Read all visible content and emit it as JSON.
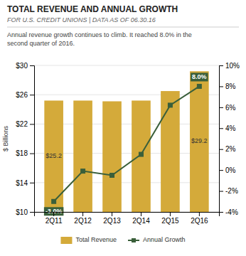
{
  "chart_data": {
    "type": "bar",
    "title": "TOTAL REVENUE AND ANNUAL GROWTH",
    "subtitle": "FOR U.S. CREDIT UNIONS | DATA AS OF 06.30.16",
    "description": "Annual revenue growth continues to climb. It reached 8.0% in the\nsecond quarter of 2016.",
    "categories": [
      "2Q11",
      "2Q12",
      "2Q13",
      "2Q14",
      "2Q15",
      "2Q16"
    ],
    "series": [
      {
        "name": "Total Revenue",
        "type": "bar",
        "color": "#D4AA3A",
        "values": [
          25.2,
          25.2,
          25.1,
          25.2,
          26.5,
          29.2
        ],
        "value_labels": [
          "$25.2",
          null,
          null,
          null,
          null,
          "$29.2"
        ]
      },
      {
        "name": "Annual Growth",
        "type": "line",
        "axis": "y2",
        "color": "#3A5F3A",
        "marker": "square",
        "values": [
          -3.0,
          -0.1,
          -0.5,
          1.5,
          6.2,
          8.0
        ],
        "value_labels": [
          "-3.0%",
          null,
          null,
          null,
          null,
          "8.0%"
        ]
      }
    ],
    "y_label": "$ Billions",
    "ylim": [
      10,
      30
    ],
    "yticks": [
      {
        "value": 10,
        "label": "$10"
      },
      {
        "value": 14,
        "label": "$14"
      },
      {
        "value": 18,
        "label": "$18"
      },
      {
        "value": 22,
        "label": "$22"
      },
      {
        "value": 26,
        "label": "$26"
      },
      {
        "value": 30,
        "label": "$30"
      }
    ],
    "y2lim": [
      -4,
      10
    ],
    "y2ticks": [
      {
        "value": -4,
        "label": "-4%"
      },
      {
        "value": -2,
        "label": "-2%"
      },
      {
        "value": 0,
        "label": "0%"
      },
      {
        "value": 2,
        "label": "2%"
      },
      {
        "value": 4,
        "label": "4%"
      },
      {
        "value": 6,
        "label": "6%"
      },
      {
        "value": 8,
        "label": "8%"
      },
      {
        "value": 10,
        "label": "10%"
      }
    ],
    "grid": true,
    "legend": "bottom"
  }
}
